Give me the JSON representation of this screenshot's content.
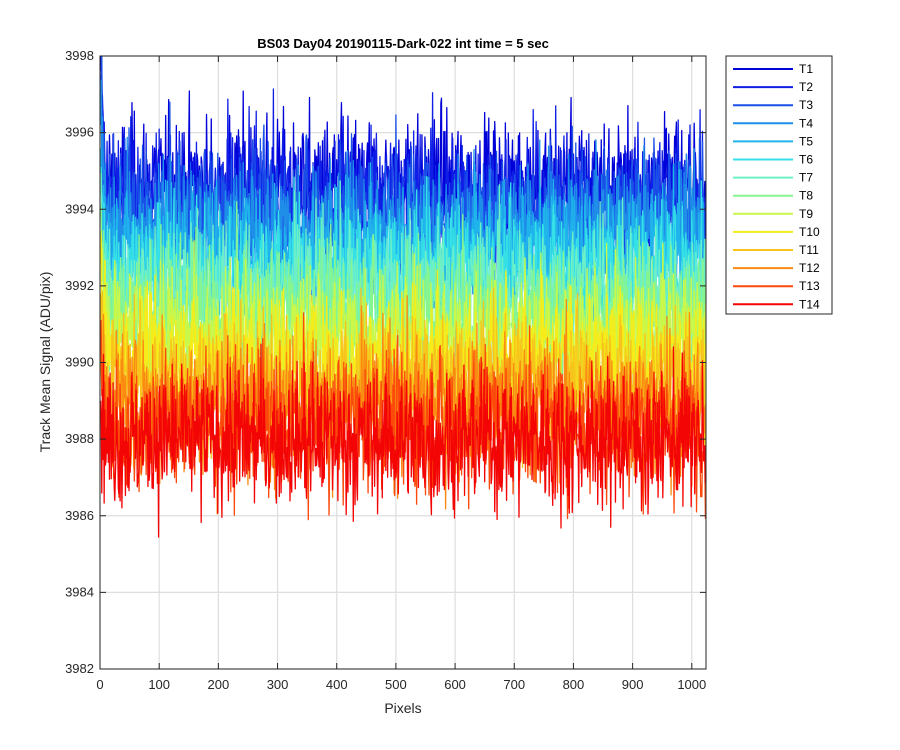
{
  "chart_data": {
    "type": "line",
    "title": "BS03 Day04 20190115-Dark-022 int time = 5 sec",
    "xlabel": "Pixels",
    "ylabel": "Track Mean Signal (ADU/pix)",
    "xlim": [
      0,
      1024
    ],
    "ylim": [
      3982,
      3998
    ],
    "xticks": [
      0,
      100,
      200,
      300,
      400,
      500,
      600,
      700,
      800,
      900,
      1000
    ],
    "yticks": [
      3982,
      3984,
      3986,
      3988,
      3990,
      3992,
      3994,
      3996,
      3998
    ],
    "grid": true,
    "legend_location": "outside-right",
    "n_points": 1024,
    "noise_std": 0.9,
    "series": [
      {
        "name": "T1",
        "color": "#0000d9",
        "mean": 3994.6,
        "start": 3997.6,
        "end": 3993.0
      },
      {
        "name": "T2",
        "color": "#0f1fe6",
        "mean": 3994.3,
        "start": 3997.3,
        "end": 3993.0
      },
      {
        "name": "T3",
        "color": "#1a50e8",
        "mean": 3993.9,
        "start": 3996.8,
        "end": 3992.6
      },
      {
        "name": "T4",
        "color": "#1e8ee8",
        "mean": 3993.4,
        "start": 3996.2,
        "end": 3992.2
      },
      {
        "name": "T5",
        "color": "#20b4ec",
        "mean": 3992.9,
        "start": 3995.6,
        "end": 3991.7
      },
      {
        "name": "T6",
        "color": "#35e1e6",
        "mean": 3992.4,
        "start": 3995.0,
        "end": 3991.2
      },
      {
        "name": "T7",
        "color": "#6df0c8",
        "mean": 3991.9,
        "start": 3994.4,
        "end": 3990.8
      },
      {
        "name": "T8",
        "color": "#86f590",
        "mean": 3991.3,
        "start": 3993.8,
        "end": 3990.3
      },
      {
        "name": "T9",
        "color": "#c9f74a",
        "mean": 3990.7,
        "start": 3993.2,
        "end": 3989.8
      },
      {
        "name": "T10",
        "color": "#f5ec1a",
        "mean": 3990.1,
        "start": 3992.6,
        "end": 3989.2
      },
      {
        "name": "T11",
        "color": "#f7c41c",
        "mean": 3989.5,
        "start": 3991.8,
        "end": 3988.6
      },
      {
        "name": "T12",
        "color": "#fa8a12",
        "mean": 3988.9,
        "start": 3991.0,
        "end": 3988.0
      },
      {
        "name": "T13",
        "color": "#fb4a0c",
        "mean": 3988.4,
        "start": 3990.2,
        "end": 3987.5
      },
      {
        "name": "T14",
        "color": "#f40505",
        "mean": 3988.0,
        "start": 3989.0,
        "end": 3987.2
      }
    ]
  }
}
